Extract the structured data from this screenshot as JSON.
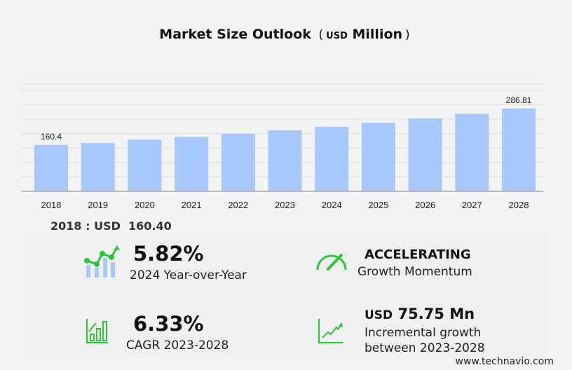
{
  "title": {
    "main": "Market Size Outlook",
    "open": "(",
    "unit": "USD",
    "unit2": "Million",
    "close": ")"
  },
  "chart_data": {
    "type": "bar",
    "title": "Market Size Outlook (USD Million)",
    "categories": [
      "2018",
      "2019",
      "2020",
      "2021",
      "2022",
      "2023",
      "2024",
      "2025",
      "2026",
      "2027",
      "2028"
    ],
    "values": [
      160.4,
      167,
      179,
      188,
      199,
      211.06,
      223.35,
      237.5,
      252.5,
      268.5,
      286.81
    ],
    "data_labels": {
      "0": "160.4",
      "10": "286.81"
    },
    "xlabel": "",
    "ylabel": "",
    "ylim": [
      0,
      350
    ],
    "grid": true,
    "color": "#a8c8fc"
  },
  "summary": {
    "label": "2018 : USD",
    "value": "160.40"
  },
  "stats": {
    "yoy": {
      "value": "5.82%",
      "label": "2024 Year-over-Year"
    },
    "momentum": {
      "value": "ACCELERATING",
      "label": "Growth Momentum"
    },
    "cagr": {
      "value": "6.33%",
      "label": "CAGR 2023-2028"
    },
    "incremental": {
      "prefix": "USD",
      "value": "75.75 Mn",
      "label1": "Incremental growth",
      "label2": "between 2023-2028"
    }
  },
  "footer": "www.technavio.com",
  "colors": {
    "green": "#2ec43a",
    "bar": "#a8c8fc"
  }
}
